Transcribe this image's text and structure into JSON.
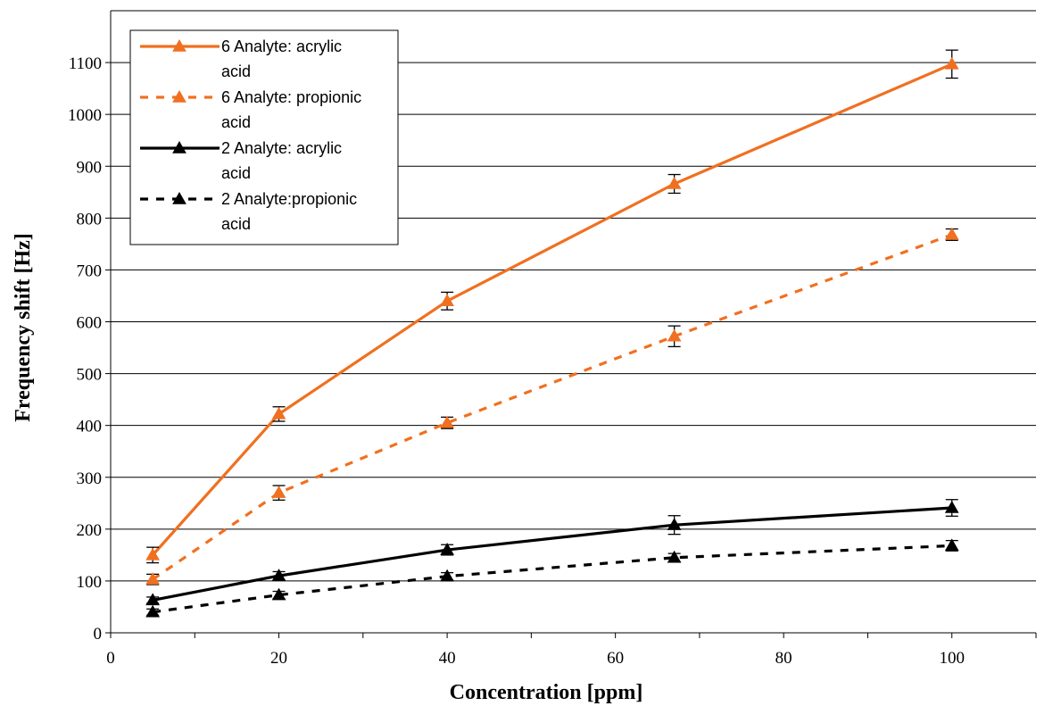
{
  "chart_data": {
    "type": "line",
    "title": "",
    "xlabel": "Concentration [ppm]",
    "ylabel": "Frequency shift [Hz]",
    "xlim": [
      0,
      110
    ],
    "ylim": [
      0,
      1200
    ],
    "xticks": [
      0,
      20,
      40,
      60,
      80,
      100
    ],
    "yticks": [
      0,
      100,
      200,
      300,
      400,
      500,
      600,
      700,
      800,
      900,
      1000,
      1100
    ],
    "grid": "horizontal",
    "legend_position": "top-left",
    "x": [
      5,
      20,
      40,
      67,
      100
    ],
    "series": [
      {
        "name": "6 Analyte: acrylic acid",
        "legend_lines": [
          "6 Analyte: acrylic",
          "acid"
        ],
        "color": "#f07020",
        "dash": "solid",
        "marker": "triangle",
        "values": [
          150,
          422,
          640,
          866,
          1097
        ],
        "errors": [
          15,
          14,
          17,
          18,
          27
        ]
      },
      {
        "name": "6 Analyte: propionic acid",
        "legend_lines": [
          "6 Analyte: propionic",
          "acid"
        ],
        "color": "#f07020",
        "dash": "dashed",
        "marker": "triangle",
        "values": [
          103,
          270,
          405,
          572,
          768
        ],
        "errors": [
          10,
          14,
          11,
          20,
          11
        ]
      },
      {
        "name": "2 Analyte: acrylic acid",
        "legend_lines": [
          "2 Analyte: acrylic",
          "acid"
        ],
        "color": "#000000",
        "dash": "solid",
        "marker": "triangle",
        "values": [
          63,
          110,
          160,
          208,
          241
        ],
        "errors": [
          6,
          8,
          10,
          18,
          16
        ]
      },
      {
        "name": "2 Analyte:propionic acid",
        "legend_lines": [
          "2 Analyte:propionic",
          "acid"
        ],
        "color": "#000000",
        "dash": "dashed",
        "marker": "triangle",
        "values": [
          40,
          73,
          109,
          145,
          168
        ],
        "errors": [
          6,
          7,
          7,
          8,
          10
        ]
      }
    ]
  }
}
